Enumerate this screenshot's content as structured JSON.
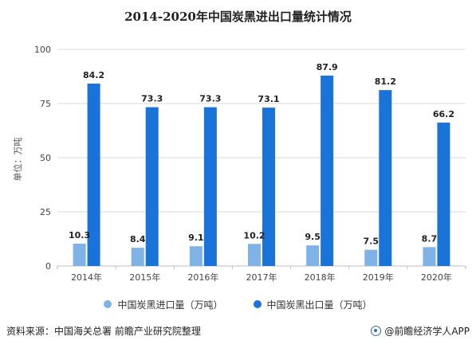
{
  "chart_data": {
    "type": "bar",
    "title": "2014-2020年中国炭黑进出口量统计情况",
    "ylabel": "单位：万吨",
    "xlabel": "",
    "categories": [
      "2014年",
      "2015年",
      "2016年",
      "2017年",
      "2018年",
      "2019年",
      "2020年"
    ],
    "ylim": [
      0,
      100
    ],
    "yticks": [
      0,
      25,
      50,
      75,
      100
    ],
    "grid": true,
    "legend_position": "bottom",
    "series": [
      {
        "name": "中国炭黑进口量（万吨）",
        "color": "#7fb3e6",
        "values": [
          10.3,
          8.4,
          9.1,
          10.2,
          9.5,
          7.5,
          8.7
        ],
        "labels": [
          "10.3",
          "8.4",
          "9.1",
          "10.2",
          "9.5",
          "7.5",
          "8.7"
        ]
      },
      {
        "name": "中国炭黑出口量（万吨）",
        "color": "#1a73d9",
        "values": [
          84.2,
          73.3,
          73.3,
          73.1,
          87.9,
          81.2,
          66.2
        ],
        "labels": [
          "84.2",
          "73.3",
          "73.3",
          "73.1",
          "87.9",
          "81.2",
          "66.2"
        ]
      }
    ]
  },
  "footer": {
    "source": "资料来源：中国海关总署 前瞻产业研究院整理",
    "brand": "@前瞻经济学人APP",
    "brand_icon": "qianzhan-logo-icon"
  }
}
